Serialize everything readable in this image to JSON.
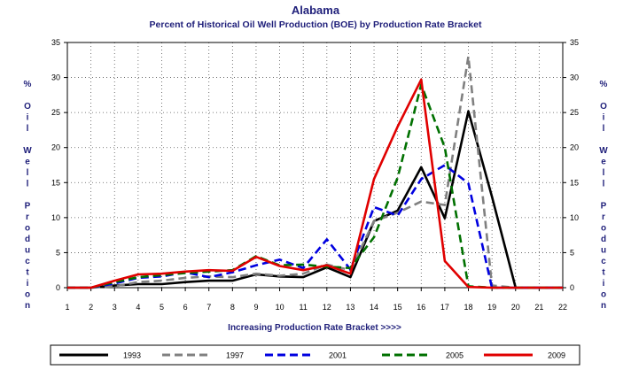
{
  "chart_data": {
    "type": "line",
    "title": "Alabama",
    "subtitle": "Percent of Historical Oil Well Production (BOE) by Production Rate Bracket",
    "xlabel": "Increasing Production Rate Bracket >>>>",
    "ylabel": "% Oil Well Production",
    "x": [
      1,
      2,
      3,
      4,
      5,
      6,
      7,
      8,
      9,
      10,
      11,
      12,
      13,
      14,
      15,
      16,
      17,
      18,
      19,
      20,
      21,
      22
    ],
    "x_tick_labels": [
      "1",
      "2",
      "3",
      "4",
      "5",
      "6",
      "7",
      "8",
      "9",
      "10",
      "11",
      "12",
      "13",
      "14",
      "15",
      "16",
      "17",
      "18",
      "19",
      "20",
      "21",
      "22"
    ],
    "y_tick_labels": [
      "0",
      "5",
      "10",
      "15",
      "20",
      "25",
      "30",
      "35"
    ],
    "xlim": [
      1,
      22
    ],
    "ylim": [
      0,
      35
    ],
    "grid": true,
    "legend_position": "bottom",
    "series": [
      {
        "name": "1993",
        "color": "#000000",
        "dash": "solid",
        "values": [
          0,
          0,
          0.3,
          0.5,
          0.5,
          0.8,
          1.0,
          1.0,
          1.9,
          1.6,
          1.5,
          2.9,
          1.5,
          9.5,
          11.0,
          17.2,
          9.9,
          25.2,
          13.0,
          0,
          0,
          0
        ]
      },
      {
        "name": "1997",
        "color": "#808080",
        "dash": "dashed",
        "values": [
          0,
          0,
          0.2,
          0.8,
          1.0,
          1.4,
          1.6,
          1.5,
          2.0,
          1.7,
          2.0,
          3.3,
          2.5,
          9.5,
          10.7,
          12.3,
          11.8,
          33.0,
          0.3,
          0,
          0,
          0
        ]
      },
      {
        "name": "2001",
        "color": "#0000e0",
        "dash": "dashed",
        "values": [
          0,
          0,
          0.6,
          1.4,
          1.6,
          2.2,
          1.5,
          2.2,
          3.2,
          4.0,
          2.8,
          6.9,
          2.6,
          11.5,
          10.3,
          15.5,
          17.5,
          14.9,
          0,
          0,
          0,
          0
        ]
      },
      {
        "name": "2005",
        "color": "#007000",
        "dash": "dashed",
        "values": [
          0,
          0,
          0.8,
          1.5,
          1.8,
          2.1,
          2.3,
          2.5,
          4.5,
          3.2,
          3.3,
          3.0,
          2.8,
          7.2,
          15.7,
          29.0,
          20.0,
          0.2,
          0,
          0,
          0,
          0
        ]
      },
      {
        "name": "2009",
        "color": "#e00000",
        "dash": "solid",
        "values": [
          0,
          0,
          1.0,
          1.9,
          2.0,
          2.3,
          2.5,
          2.4,
          4.4,
          3.1,
          2.5,
          3.2,
          2.0,
          15.5,
          23.0,
          29.7,
          3.8,
          0.1,
          0,
          0,
          0,
          0
        ]
      }
    ]
  }
}
